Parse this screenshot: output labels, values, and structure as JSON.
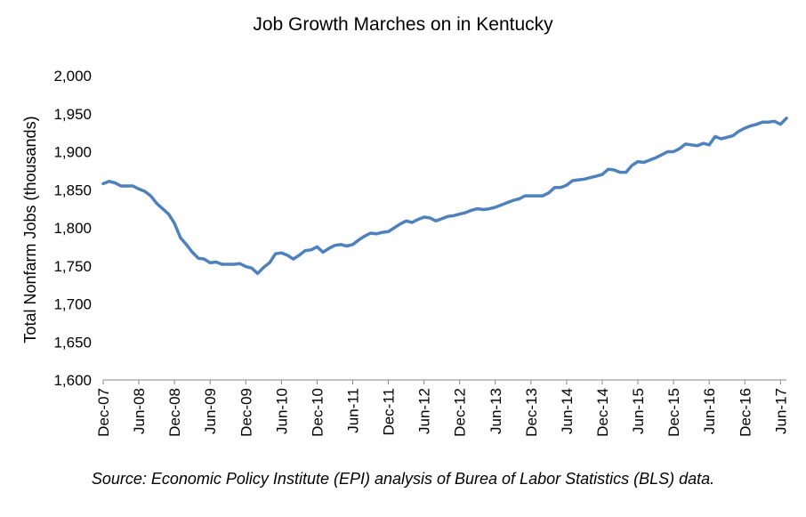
{
  "chart_data": {
    "type": "line",
    "title": "Job Growth Marches on in Kentucky",
    "ylabel": "Total Nonfarm Jobs (thousands)",
    "xlabel": "",
    "source": "Source: Economic Policy Institute (EPI) analysis of Burea of Labor Statistics (BLS) data.",
    "ylim": [
      1600,
      2000
    ],
    "y_ticks": [
      1600,
      1650,
      1700,
      1750,
      1800,
      1850,
      1900,
      1950,
      2000
    ],
    "y_tick_labels": [
      "1,600",
      "1,650",
      "1,700",
      "1,750",
      "1,800",
      "1,850",
      "1,900",
      "1,950",
      "2,000"
    ],
    "x_range": [
      "2007-12",
      "2017-07"
    ],
    "x_ticks": [
      "Dec-07",
      "Jun-08",
      "Dec-08",
      "Jun-09",
      "Dec-09",
      "Jun-10",
      "Dec-10",
      "Jun-11",
      "Dec-11",
      "Jun-12",
      "Dec-12",
      "Jun-13",
      "Dec-13",
      "Jun-14",
      "Dec-14",
      "Jun-15",
      "Dec-15",
      "Jun-16",
      "Dec-16",
      "Jun-17"
    ],
    "grid": false,
    "legend": "none",
    "line_color": "#4f81bd",
    "series": [
      {
        "x": [
          "2007-12",
          "2008-01",
          "2008-02",
          "2008-03",
          "2008-04",
          "2008-05",
          "2008-06",
          "2008-07",
          "2008-08",
          "2008-09",
          "2008-10",
          "2008-11",
          "2008-12",
          "2009-01",
          "2009-02",
          "2009-03",
          "2009-04",
          "2009-05",
          "2009-06",
          "2009-07",
          "2009-08",
          "2009-09",
          "2009-10",
          "2009-11",
          "2009-12",
          "2010-01",
          "2010-02",
          "2010-03",
          "2010-04",
          "2010-05",
          "2010-06",
          "2010-07",
          "2010-08",
          "2010-09",
          "2010-10",
          "2010-11",
          "2010-12",
          "2011-01",
          "2011-02",
          "2011-03",
          "2011-04",
          "2011-05",
          "2011-06",
          "2011-07",
          "2011-08",
          "2011-09",
          "2011-10",
          "2011-11",
          "2011-12",
          "2012-01",
          "2012-02",
          "2012-03",
          "2012-04",
          "2012-05",
          "2012-06",
          "2012-07",
          "2012-08",
          "2012-09",
          "2012-10",
          "2012-11",
          "2012-12",
          "2013-01",
          "2013-02",
          "2013-03",
          "2013-04",
          "2013-05",
          "2013-06",
          "2013-07",
          "2013-08",
          "2013-09",
          "2013-10",
          "2013-11",
          "2013-12",
          "2014-01",
          "2014-02",
          "2014-03",
          "2014-04",
          "2014-05",
          "2014-06",
          "2014-07",
          "2014-08",
          "2014-09",
          "2014-10",
          "2014-11",
          "2014-12",
          "2015-01",
          "2015-02",
          "2015-03",
          "2015-04",
          "2015-05",
          "2015-06",
          "2015-07",
          "2015-08",
          "2015-09",
          "2015-10",
          "2015-11",
          "2015-12",
          "2016-01",
          "2016-02",
          "2016-03",
          "2016-04",
          "2016-05",
          "2016-06",
          "2016-07",
          "2016-08",
          "2016-09",
          "2016-10",
          "2016-11",
          "2016-12",
          "2017-01",
          "2017-02",
          "2017-03",
          "2017-04",
          "2017-05",
          "2017-06",
          "2017-07"
        ],
        "values": [
          1858,
          1861,
          1859,
          1855,
          1855,
          1855,
          1851,
          1848,
          1842,
          1832,
          1825,
          1818,
          1806,
          1787,
          1778,
          1768,
          1760,
          1759,
          1754,
          1755,
          1752,
          1752,
          1752,
          1753,
          1749,
          1747,
          1740,
          1748,
          1754,
          1766,
          1767,
          1764,
          1759,
          1764,
          1770,
          1771,
          1775,
          1768,
          1773,
          1777,
          1778,
          1776,
          1778,
          1784,
          1789,
          1793,
          1792,
          1794,
          1795,
          1800,
          1805,
          1809,
          1807,
          1811,
          1814,
          1813,
          1809,
          1812,
          1815,
          1816,
          1818,
          1820,
          1823,
          1825,
          1824,
          1825,
          1827,
          1830,
          1833,
          1836,
          1838,
          1842,
          1842,
          1842,
          1842,
          1846,
          1853,
          1853,
          1856,
          1862,
          1863,
          1864,
          1866,
          1868,
          1870,
          1877,
          1876,
          1873,
          1873,
          1882,
          1887,
          1886,
          1889,
          1892,
          1896,
          1900,
          1900,
          1904,
          1910,
          1909,
          1908,
          1911,
          1909,
          1920,
          1917,
          1919,
          1921,
          1927,
          1931,
          1934,
          1936,
          1939,
          1939,
          1940,
          1936,
          1944
        ]
      }
    ]
  }
}
